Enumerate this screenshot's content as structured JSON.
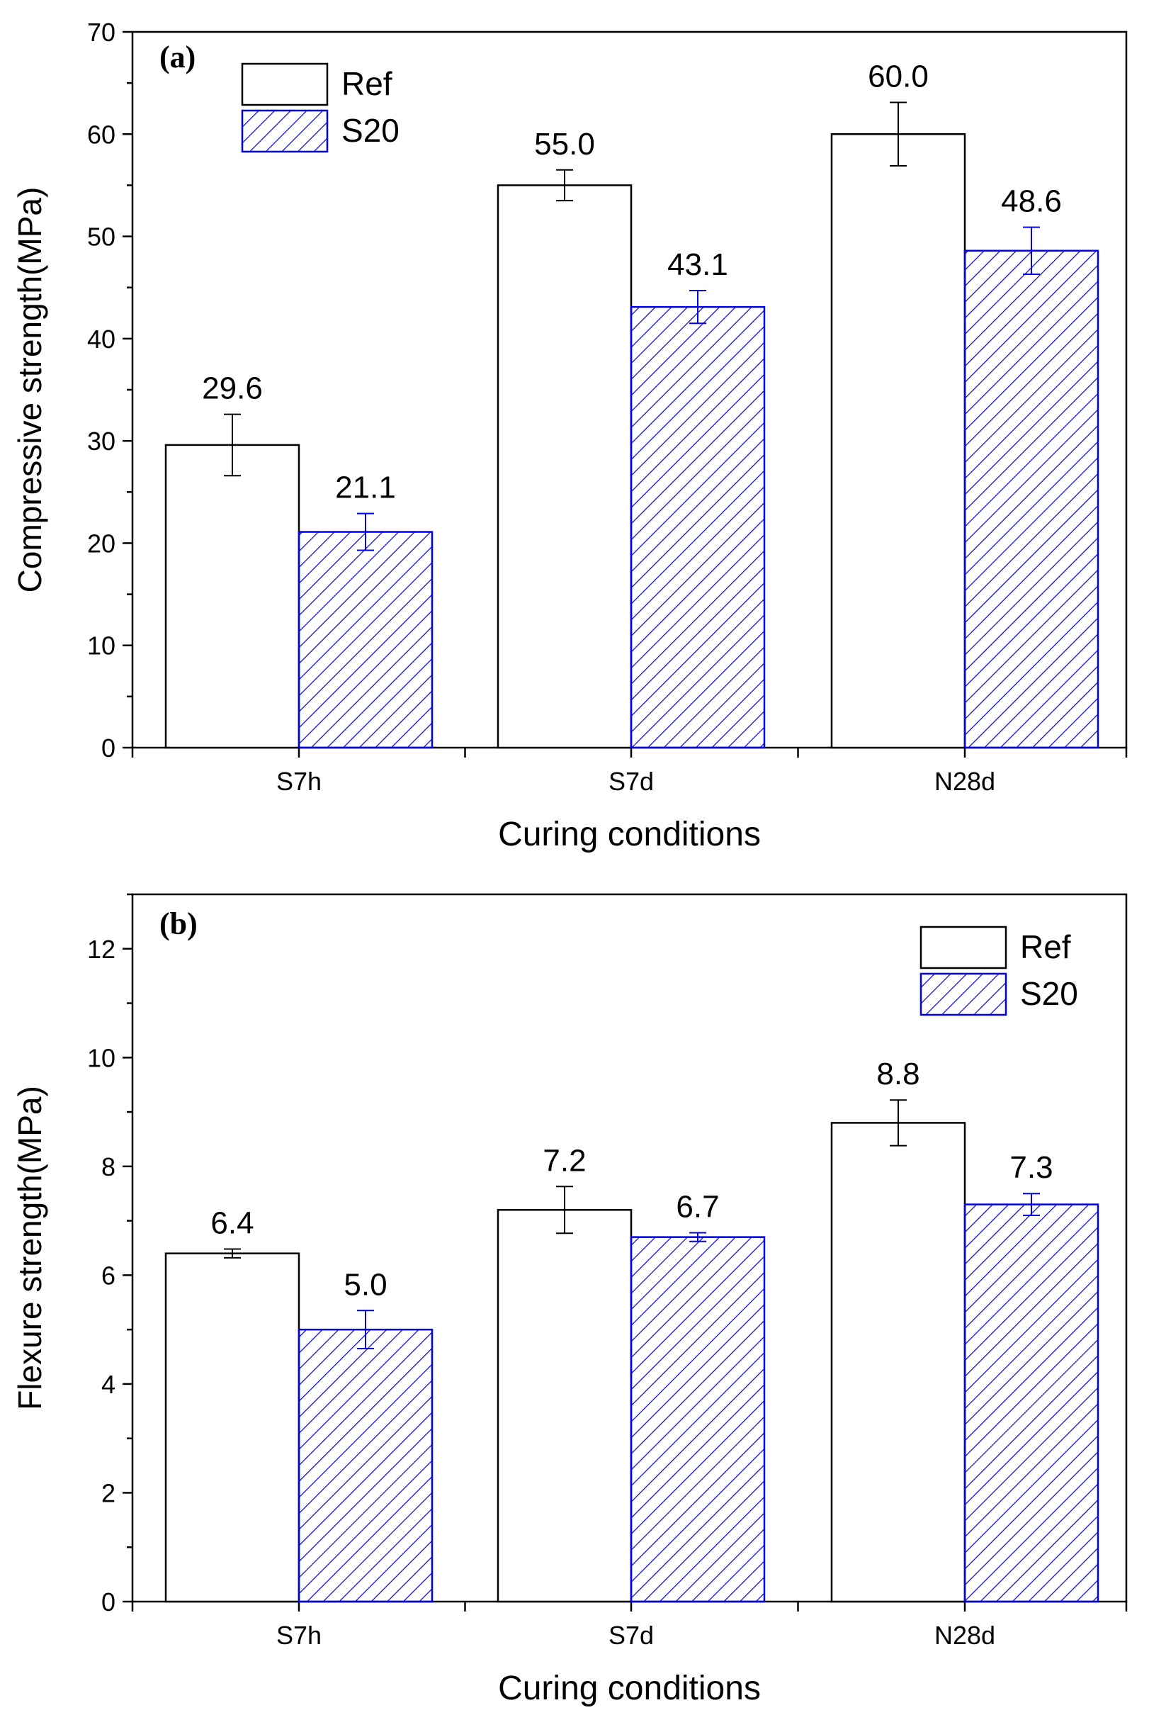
{
  "chart_data": [
    {
      "type": "bar",
      "panel_label": "(a)",
      "title": "",
      "xlabel": "Curing conditions",
      "ylabel": "Compressive strength(MPa)",
      "categories": [
        "S7h",
        "S7d",
        "N28d"
      ],
      "ylim": [
        0,
        70
      ],
      "yticks": [
        0,
        10,
        20,
        30,
        40,
        50,
        60,
        70
      ],
      "legend_position": "top-left",
      "series": [
        {
          "name": "Ref",
          "pattern": "none",
          "color": "#000000",
          "values": [
            29.6,
            55.0,
            60.0
          ],
          "labels": [
            "29.6",
            "55.0",
            "60.0"
          ],
          "errors": [
            3.0,
            1.5,
            3.1
          ]
        },
        {
          "name": "S20",
          "pattern": "hatch",
          "color": "#0000e0",
          "values": [
            21.1,
            43.1,
            48.6
          ],
          "labels": [
            "21.1",
            "43.1",
            "48.6"
          ],
          "errors": [
            1.8,
            1.6,
            2.3
          ]
        }
      ]
    },
    {
      "type": "bar",
      "panel_label": "(b)",
      "title": "",
      "xlabel": "Curing conditions",
      "ylabel": "Flexure strength(MPa)",
      "categories": [
        "S7h",
        "S7d",
        "N28d"
      ],
      "ylim": [
        0,
        13
      ],
      "yticks": [
        0,
        2,
        4,
        6,
        8,
        10,
        12
      ],
      "legend_position": "top-right",
      "series": [
        {
          "name": "Ref",
          "pattern": "none",
          "color": "#000000",
          "values": [
            6.4,
            7.2,
            8.8
          ],
          "labels": [
            "6.4",
            "7.2",
            "8.8"
          ],
          "errors": [
            0.08,
            0.43,
            0.42
          ]
        },
        {
          "name": "S20",
          "pattern": "hatch",
          "color": "#0000e0",
          "values": [
            5.0,
            6.7,
            7.3
          ],
          "labels": [
            "5.0",
            "6.7",
            "7.3"
          ],
          "errors": [
            0.35,
            0.08,
            0.2
          ]
        }
      ]
    }
  ]
}
